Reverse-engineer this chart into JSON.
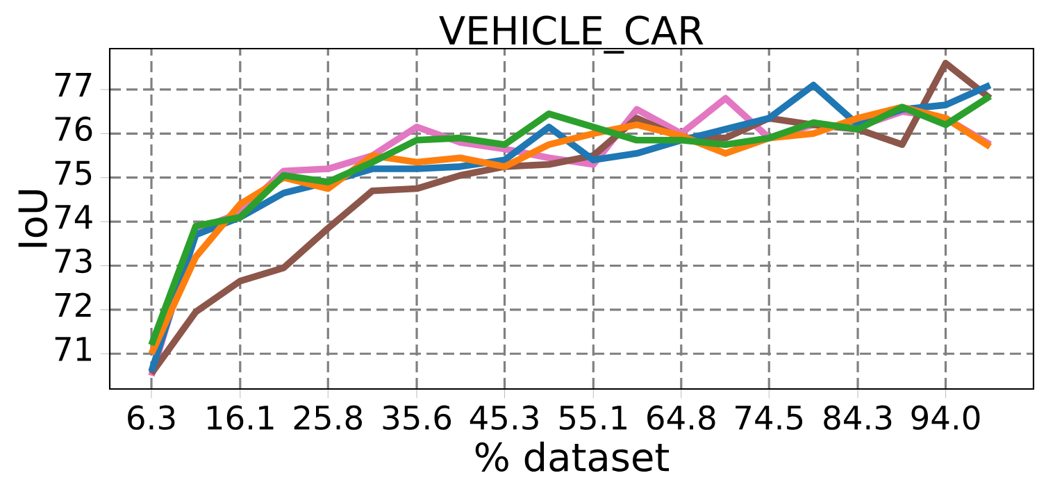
{
  "chart_data": {
    "type": "line",
    "title": "VEHICLE_CAR",
    "xlabel": "% dataset",
    "ylabel": "IoU",
    "x": [
      6.3,
      11.2,
      16.1,
      20.9,
      25.8,
      30.7,
      35.6,
      40.4,
      45.3,
      50.2,
      55.1,
      59.9,
      64.8,
      69.7,
      74.5,
      79.4,
      84.3,
      89.2,
      94.0,
      98.9
    ],
    "series": [
      {
        "color": "#e377c2",
        "values": [
          70.5,
          73.8,
          74.2,
          75.15,
          75.2,
          75.5,
          76.15,
          75.8,
          75.65,
          75.45,
          75.3,
          76.55,
          76.0,
          76.8,
          75.9,
          76.2,
          76.15,
          76.5,
          76.35,
          75.75
        ]
      },
      {
        "color": "#8c564b",
        "values": [
          70.55,
          71.95,
          72.65,
          72.95,
          73.85,
          74.7,
          74.75,
          75.05,
          75.25,
          75.3,
          75.5,
          76.35,
          75.9,
          75.9,
          76.35,
          76.2,
          76.1,
          75.75,
          77.6,
          76.8
        ]
      },
      {
        "color": "#1f77b4",
        "values": [
          70.6,
          73.7,
          74.1,
          74.65,
          74.9,
          75.2,
          75.2,
          75.25,
          75.4,
          76.15,
          75.4,
          75.55,
          75.85,
          76.1,
          76.35,
          77.1,
          76.2,
          76.55,
          76.65,
          77.1
        ]
      },
      {
        "color": "#ff7f0e",
        "values": [
          71.0,
          73.2,
          74.4,
          75.0,
          74.75,
          75.5,
          75.35,
          75.45,
          75.25,
          75.75,
          76.0,
          76.2,
          75.95,
          75.55,
          75.9,
          76.0,
          76.35,
          76.6,
          76.35,
          75.7
        ]
      },
      {
        "color": "#2ca02c",
        "values": [
          71.2,
          73.9,
          74.1,
          75.05,
          74.9,
          75.35,
          75.85,
          75.9,
          75.75,
          76.45,
          76.15,
          75.85,
          75.85,
          75.75,
          75.9,
          76.25,
          76.1,
          76.6,
          76.2,
          76.85
        ]
      }
    ],
    "xlim": [
      1.7,
      103.7
    ],
    "ylim": [
      70.2,
      77.93
    ],
    "xticks": [
      6.3,
      16.1,
      25.8,
      35.6,
      45.3,
      55.1,
      64.8,
      74.5,
      84.3,
      {
        "value": 94.0,
        "label": "94.0"
      }
    ],
    "yticks": [
      71,
      72,
      73,
      74,
      75,
      76,
      77
    ],
    "grid": true,
    "marker": "none",
    "line_style": "solid"
  }
}
